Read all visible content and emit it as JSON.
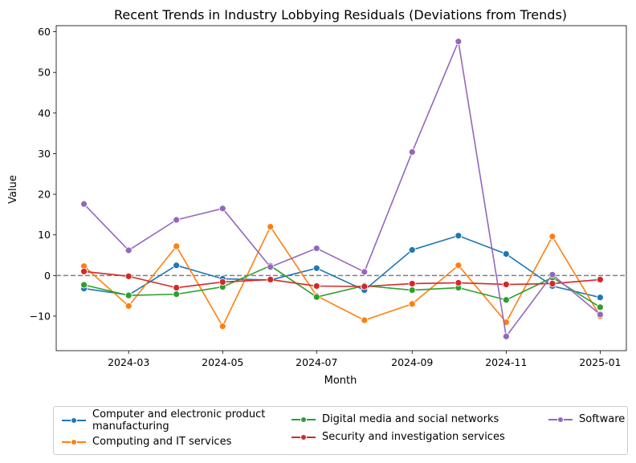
{
  "chart_data": {
    "type": "line",
    "title": "Recent Trends in Industry Lobbying Residuals (Deviations from Trends)",
    "xlabel": "Month",
    "ylabel": "Value",
    "x": [
      "2024-02",
      "2024-03",
      "2024-04",
      "2024-05",
      "2024-06",
      "2024-07",
      "2024-08",
      "2024-09",
      "2024-10",
      "2024-11",
      "2024-12",
      "2025-01"
    ],
    "x_ticks": [
      "2024-03",
      "2024-05",
      "2024-07",
      "2024-09",
      "2024-11",
      "2025-01"
    ],
    "y_ticks": [
      -10,
      0,
      10,
      20,
      30,
      40,
      50,
      60
    ],
    "ylim": [
      -18.5,
      61.5
    ],
    "xlim": [
      "2024-01-14",
      "2025-01-18"
    ],
    "reference_line": {
      "y": 0,
      "style": "dashed",
      "color": "#808080"
    },
    "grid": false,
    "legend_position": "bottom",
    "series": [
      {
        "name": "Computer and electronic product\nmanufacturing",
        "color": "#1f77b4",
        "values": [
          -3.2,
          -4.8,
          2.5,
          -0.8,
          -1.1,
          1.8,
          -3.6,
          6.3,
          9.8,
          5.3,
          -2.6,
          -5.4
        ]
      },
      {
        "name": "Computing and IT services",
        "color": "#ff7f0e",
        "values": [
          2.3,
          -7.5,
          7.2,
          -12.5,
          12.0,
          -5.0,
          -11.0,
          -7.0,
          2.5,
          -11.5,
          9.6,
          -10.0
        ]
      },
      {
        "name": "Digital media and social networks",
        "color": "#2ca02c",
        "values": [
          -2.3,
          -4.9,
          -4.6,
          -2.8,
          2.4,
          -5.3,
          -2.5,
          -3.6,
          -3.0,
          -6.0,
          -0.5,
          -7.8
        ]
      },
      {
        "name": "Security and investigation services",
        "color": "#d62728",
        "values": [
          1.0,
          -0.2,
          -3.0,
          -1.6,
          -1.0,
          -2.6,
          -2.7,
          -2.0,
          -1.8,
          -2.2,
          -2.0,
          -1.0
        ]
      },
      {
        "name": "Software",
        "color": "#9467bd",
        "values": [
          17.6,
          6.2,
          13.7,
          16.5,
          2.1,
          6.7,
          0.9,
          30.4,
          57.6,
          -15.0,
          0.2,
          -9.6
        ]
      }
    ]
  }
}
